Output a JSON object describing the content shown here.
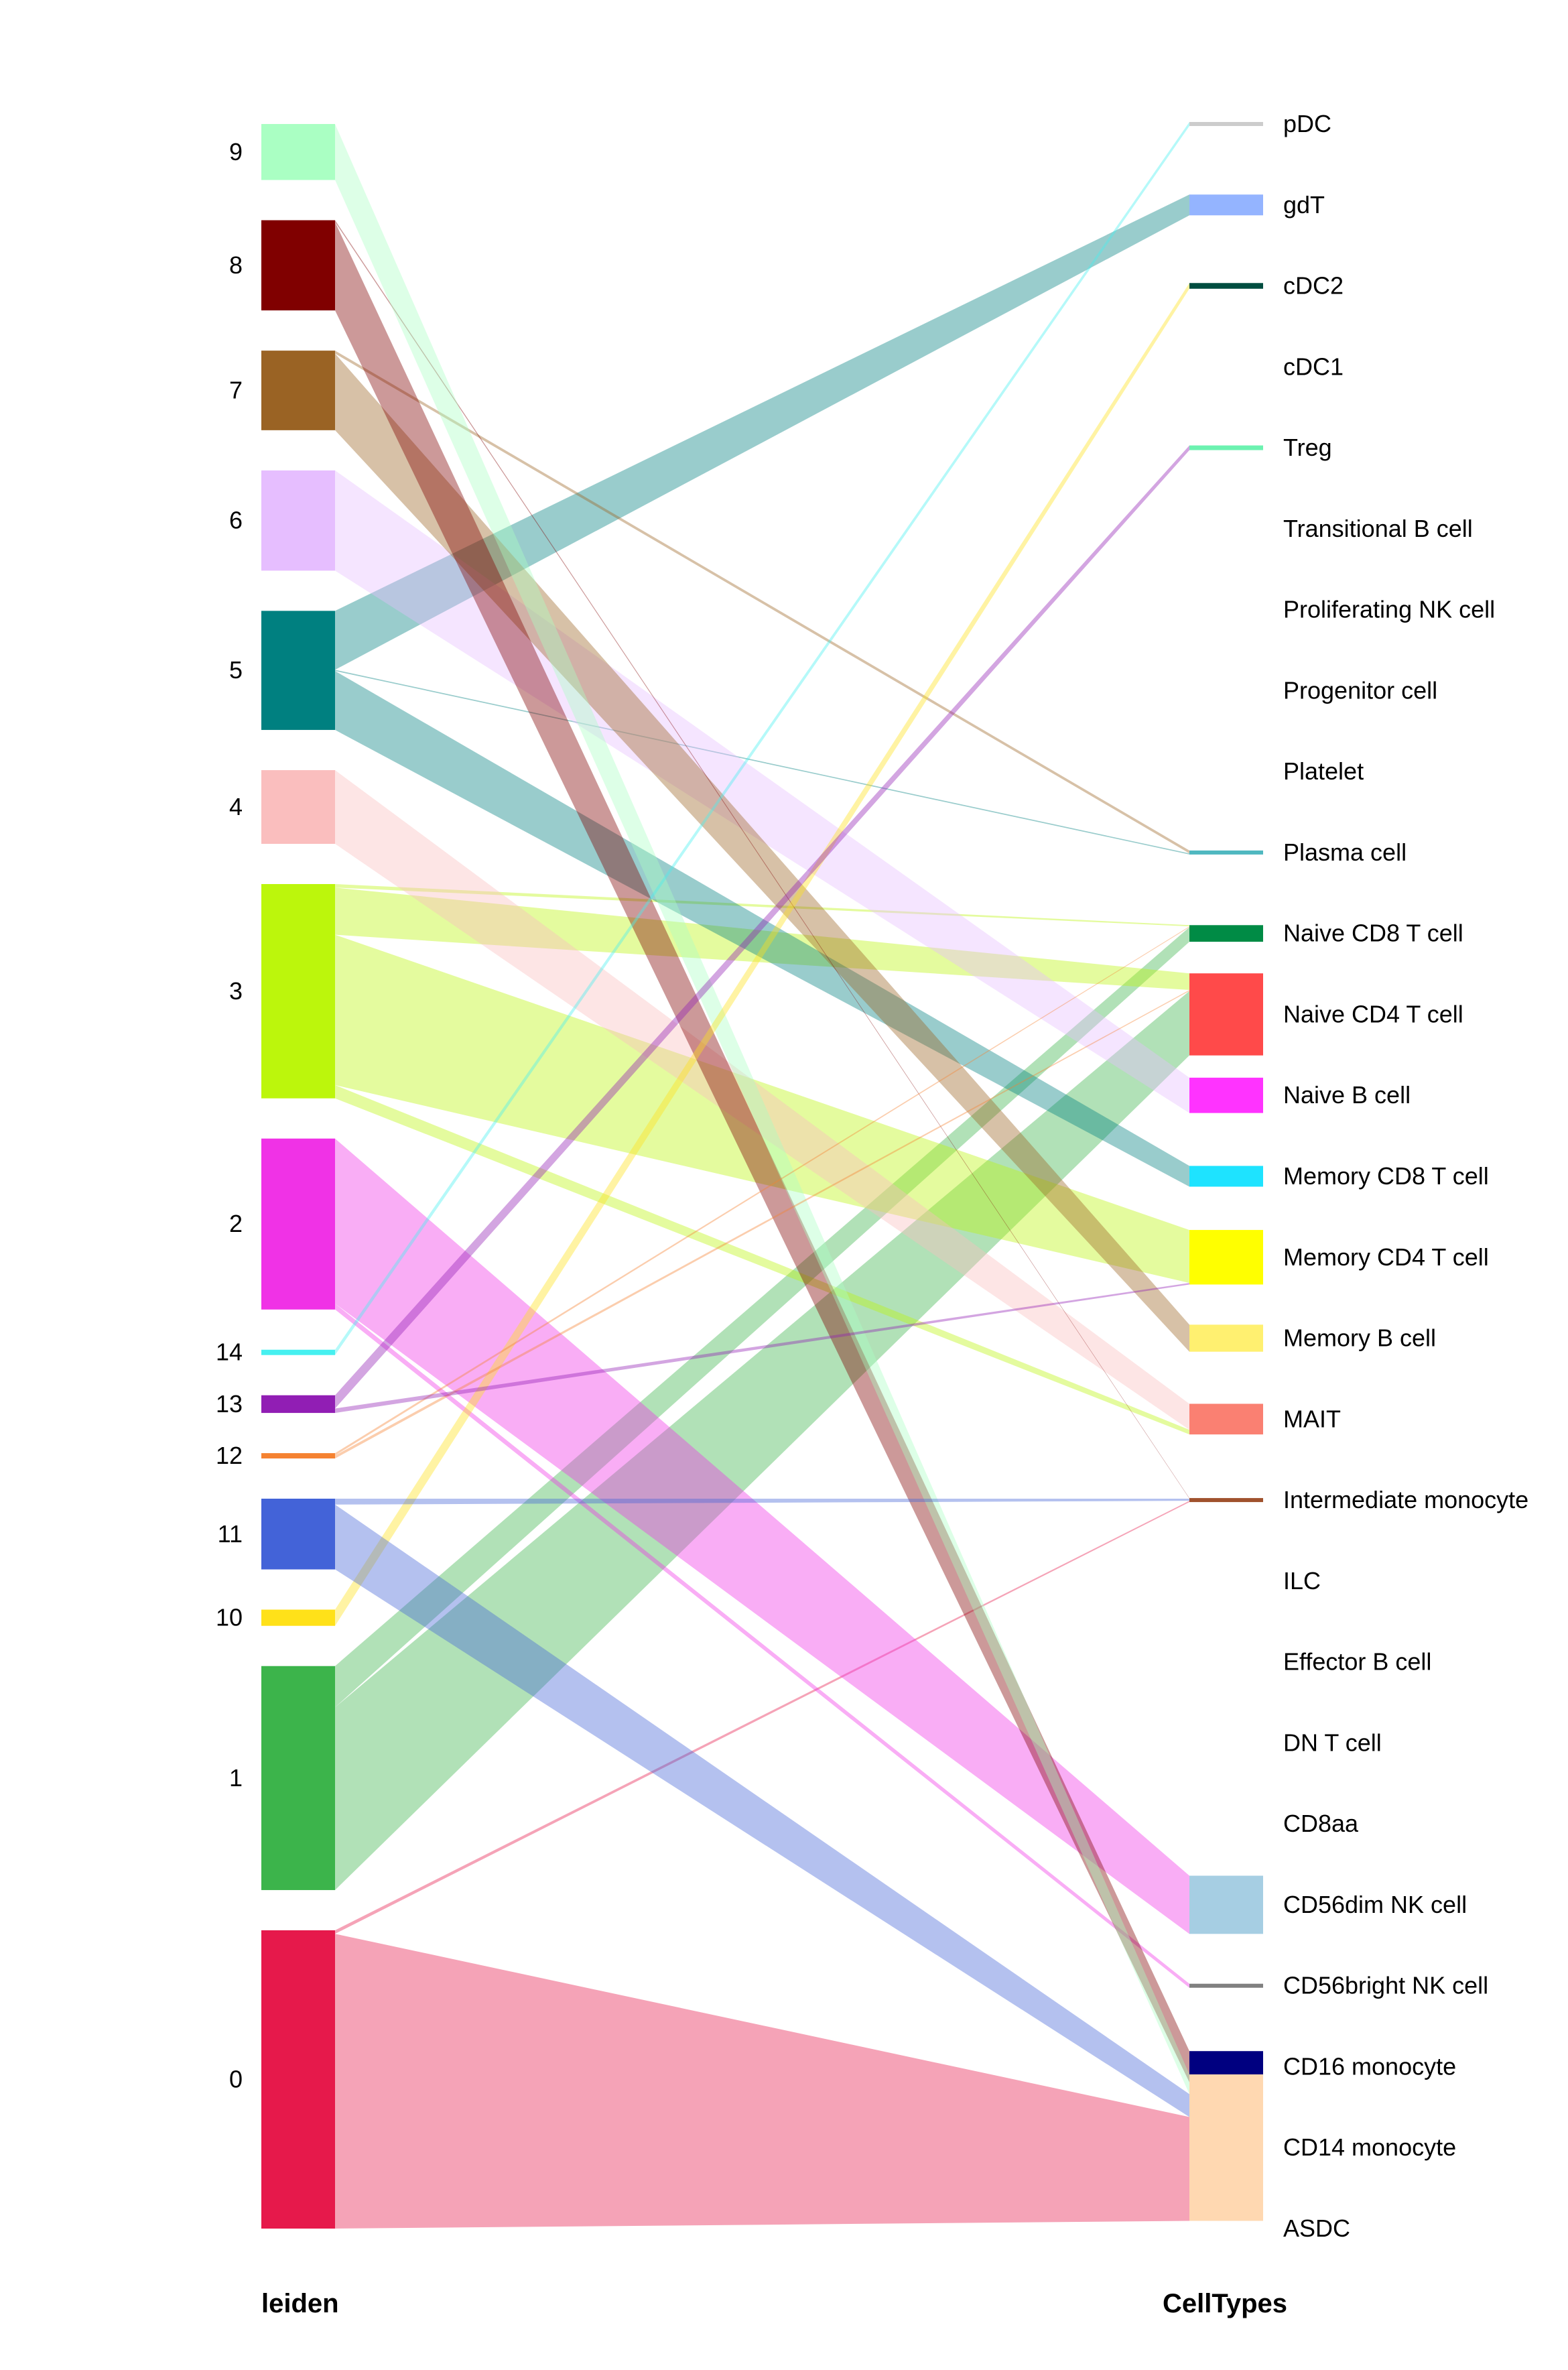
{
  "chart_data": {
    "type": "sankey",
    "left_title": "leiden",
    "right_title": "CellTypes",
    "left_nodes": [
      {
        "name": "9",
        "color": "#aaffc3"
      },
      {
        "name": "8",
        "color": "#800000"
      },
      {
        "name": "7",
        "color": "#9a6324"
      },
      {
        "name": "6",
        "color": "#e6beff"
      },
      {
        "name": "5",
        "color": "#008080"
      },
      {
        "name": "4",
        "color": "#fabebe"
      },
      {
        "name": "3",
        "color": "#bcf60c"
      },
      {
        "name": "2",
        "color": "#f032e6"
      },
      {
        "name": "14",
        "color": "#46f0f0"
      },
      {
        "name": "13",
        "color": "#911eb4"
      },
      {
        "name": "12",
        "color": "#f58231"
      },
      {
        "name": "11",
        "color": "#4363d8"
      },
      {
        "name": "10",
        "color": "#ffe119"
      },
      {
        "name": "1",
        "color": "#3cb44b"
      },
      {
        "name": "0",
        "color": "#e6194b"
      }
    ],
    "right_nodes": [
      {
        "name": "pDC",
        "color": "#cccccc"
      },
      {
        "name": "gdT",
        "color": "#94b4ff"
      },
      {
        "name": "cDC2",
        "color": "#004d40"
      },
      {
        "name": "cDC1",
        "color": "#cccccc"
      },
      {
        "name": "Treg",
        "color": "#6cf2b0"
      },
      {
        "name": "Transitional B cell",
        "color": "#cccccc"
      },
      {
        "name": "Proliferating NK cell",
        "color": "#cccccc"
      },
      {
        "name": "Progenitor cell",
        "color": "#cccccc"
      },
      {
        "name": "Platelet",
        "color": "#cccccc"
      },
      {
        "name": "Plasma cell",
        "color": "#4fb8c0"
      },
      {
        "name": "Naive CD8 T cell",
        "color": "#008b45"
      },
      {
        "name": "Naive CD4 T cell",
        "color": "#ff4a4a"
      },
      {
        "name": "Naive B cell",
        "color": "#ff33ff"
      },
      {
        "name": "Memory CD8 T cell",
        "color": "#1ee3ff"
      },
      {
        "name": "Memory CD4 T cell",
        "color": "#ffff00"
      },
      {
        "name": "Memory B cell",
        "color": "#fff070"
      },
      {
        "name": "MAIT",
        "color": "#fa8072"
      },
      {
        "name": "Intermediate monocyte",
        "color": "#a0522d"
      },
      {
        "name": "ILC",
        "color": "#cccccc"
      },
      {
        "name": "Effector B cell",
        "color": "#bce65a"
      },
      {
        "name": "DN T cell",
        "color": "#cccccc"
      },
      {
        "name": "CD8aa",
        "color": "#cccccc"
      },
      {
        "name": "CD56dim NK cell",
        "color": "#a6cee3"
      },
      {
        "name": "CD56bright NK cell",
        "color": "#808080"
      },
      {
        "name": "CD16 monocyte",
        "color": "#000080"
      },
      {
        "name": "CD14 monocyte",
        "color": "#ffd8b1"
      },
      {
        "name": "ASDC",
        "color": "#cccccc"
      }
    ],
    "flows": [
      {
        "source": "0",
        "target": "CD14 monocyte",
        "value": 1000
      },
      {
        "source": "0",
        "target": "Intermediate monocyte",
        "value": 12
      },
      {
        "source": "1",
        "target": "Naive CD4 T cell",
        "value": 620
      },
      {
        "source": "1",
        "target": "Naive CD8 T cell",
        "value": 140
      },
      {
        "source": "2",
        "target": "CD56dim NK cell",
        "value": 560
      },
      {
        "source": "2",
        "target": "CD56bright NK cell",
        "value": 20
      },
      {
        "source": "3",
        "target": "Memory CD4 T cell",
        "value": 510
      },
      {
        "source": "3",
        "target": "Naive CD4 T cell",
        "value": 160
      },
      {
        "source": "3",
        "target": "MAIT",
        "value": 45
      },
      {
        "source": "3",
        "target": "Naive CD8 T cell",
        "value": 12
      },
      {
        "source": "4",
        "target": "MAIT",
        "value": 250
      },
      {
        "source": "5",
        "target": "gdT",
        "value": 200
      },
      {
        "source": "5",
        "target": "Memory CD8 T cell",
        "value": 200
      },
      {
        "source": "5",
        "target": "Plasma cell",
        "value": 4
      },
      {
        "source": "6",
        "target": "Naive B cell",
        "value": 340
      },
      {
        "source": "7",
        "target": "Memory B cell",
        "value": 260
      },
      {
        "source": "7",
        "target": "Plasma cell",
        "value": 10
      },
      {
        "source": "8",
        "target": "CD16 monocyte",
        "value": 300
      },
      {
        "source": "8",
        "target": "Intermediate monocyte",
        "value": 6
      },
      {
        "source": "9",
        "target": "CD14 monocyte",
        "value": 190
      },
      {
        "source": "10",
        "target": "cDC2",
        "value": 55
      },
      {
        "source": "11",
        "target": "CD14 monocyte",
        "value": 220
      },
      {
        "source": "11",
        "target": "Intermediate monocyte",
        "value": 20
      },
      {
        "source": "12",
        "target": "Naive CD4 T cell",
        "value": 10
      },
      {
        "source": "12",
        "target": "Naive CD8 T cell",
        "value": 8
      },
      {
        "source": "13",
        "target": "Treg",
        "value": 45
      },
      {
        "source": "13",
        "target": "Memory CD4 T cell",
        "value": 15
      },
      {
        "source": "14",
        "target": "pDC",
        "value": 18
      }
    ]
  }
}
